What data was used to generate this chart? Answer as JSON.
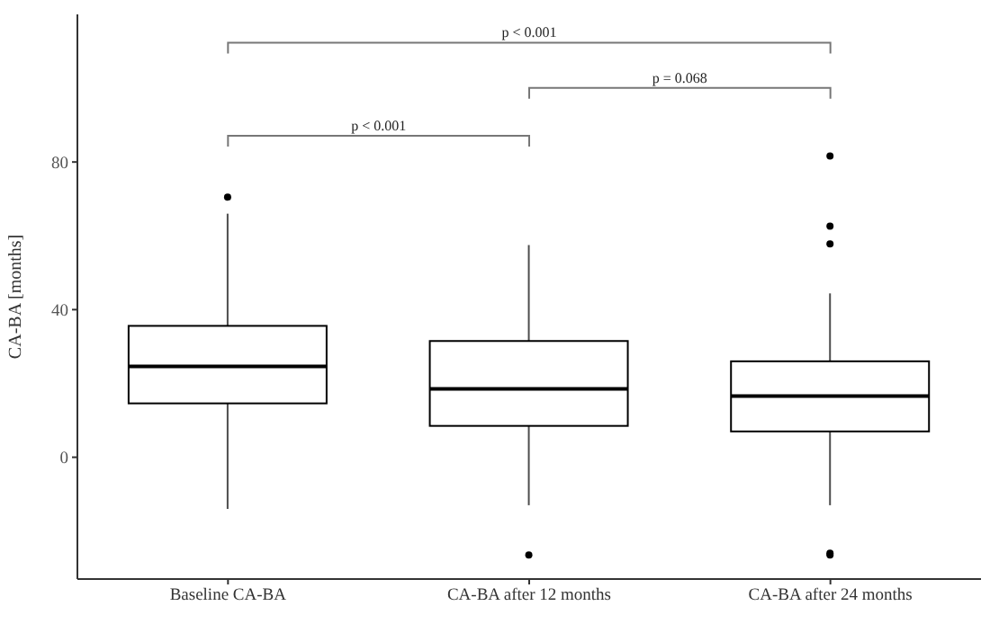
{
  "chart_data": {
    "type": "box",
    "ylabel": "CA-BA [months]",
    "categories": [
      "Baseline CA-BA",
      "CA-BA after 12 months",
      "CA-BA after 24 months"
    ],
    "boxes": [
      {
        "low": -14,
        "q1": 14.6,
        "median": 24.6,
        "q3": 35.6,
        "high": 66,
        "outliers": [
          70.5
        ]
      },
      {
        "low": -13,
        "q1": 8.5,
        "median": 18.5,
        "q3": 31.5,
        "high": 57.5,
        "outliers": [
          -26.5
        ]
      },
      {
        "low": -13,
        "q1": 7,
        "median": 16.6,
        "q3": 26,
        "high": 44.4,
        "outliers": [
          81.6,
          62.6,
          57.8,
          -26,
          -26.5
        ]
      }
    ],
    "color": "#000000",
    "ylim": [
      -33,
      120
    ],
    "yticks": [
      0,
      40,
      80
    ],
    "annotations": [
      "p < 0.001",
      "p = 0.068",
      "p < 0.001"
    ]
  }
}
